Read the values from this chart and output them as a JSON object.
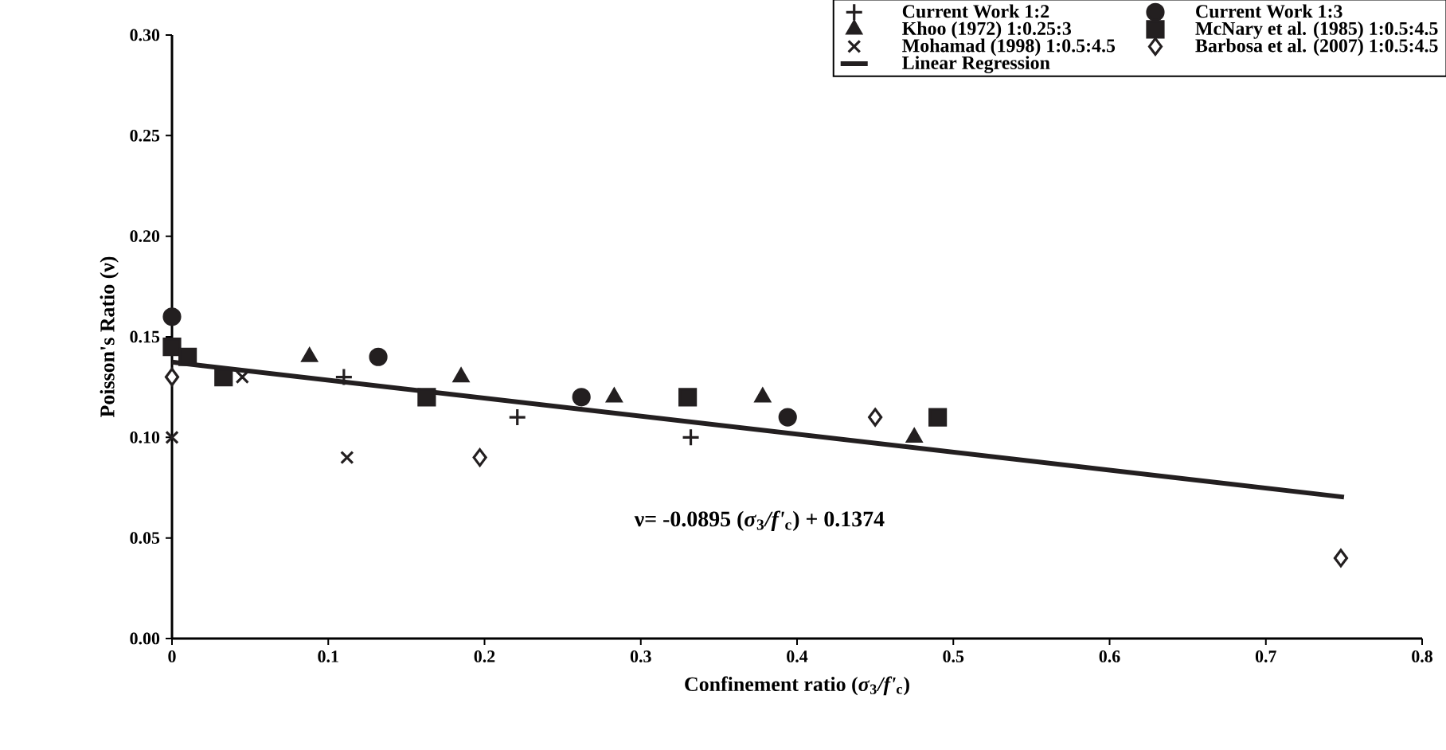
{
  "chart_data": {
    "type": "scatter",
    "xlabel": "Confinement ratio (*σ*$_{3}$*/f'*$_{c}$)",
    "ylabel": "Poisson's Ratio (ν)",
    "xlim": [
      0,
      0.8
    ],
    "xticks": [
      0,
      0.1,
      0.2,
      0.3,
      0.4,
      0.5,
      0.6,
      0.7,
      0.8
    ],
    "ylim": [
      0,
      0.3
    ],
    "yticks": [
      {
        "value": 0,
        "label": "0.00"
      },
      0.05,
      {
        "value": 0.1,
        "label": "0.10"
      },
      0.15,
      {
        "value": 0.2,
        "label": "0.20"
      },
      0.25,
      {
        "value": 0.3,
        "label": "0.30"
      }
    ],
    "legend": "top right",
    "grid": false,
    "annotations": [
      "ν= -0.0895 (*σ*$_{3}$*/f'*$_{c}$) + 0.1374"
    ],
    "series": [
      {
        "name": "Current Work 1:2",
        "color": "#231f20",
        "marker": "cross",
        "x": [
          0.11,
          0.221,
          0.332
        ],
        "values": [
          0.13,
          0.11,
          0.1
        ]
      },
      {
        "name": "Current Work 1:3",
        "color": "#231f20",
        "marker": "circle",
        "x": [
          0,
          0.132,
          0.262,
          0.394
        ],
        "values": [
          0.16,
          0.14,
          0.12,
          0.11
        ]
      },
      {
        "name": "Khoo (1972) 1:0.25:3",
        "color": "#231f20",
        "marker": "triangle",
        "x": [
          0.088,
          0.185,
          0.283,
          0.378,
          0.475
        ],
        "values": [
          0.14,
          0.13,
          0.12,
          0.12,
          0.1
        ]
      },
      {
        "name": "McNary et al. (1985) 1:0.5:4.5",
        "color": "#231f20",
        "marker": "square",
        "x": [
          0,
          0.01,
          0.033,
          0.163,
          0.33,
          0.49
        ],
        "values": [
          0.145,
          0.14,
          0.13,
          0.12,
          0.12,
          0.11
        ]
      },
      {
        "name": "Mohamad (1998) 1:0.5:4.5",
        "color": "#231f20",
        "marker": "cross",
        "x": [
          0,
          0.045,
          0.112
        ],
        "values": [
          0.1,
          0.13,
          0.09
        ]
      },
      {
        "name": "Barbosa et al. (2007) 1:0.5:4.5",
        "color": "#231f20",
        "marker": "diamond",
        "x": [
          0,
          0.197,
          0.45,
          0.748
        ],
        "values": [
          0.13,
          0.09,
          0.11,
          0.04
        ]
      },
      {
        "name": "Linear Regression",
        "type": "line",
        "color": "#231f20",
        "marker": "none",
        "line_style": "solid",
        "x": [
          0,
          0.75
        ],
        "values": [
          0.1374,
          0.0703
        ]
      }
    ]
  }
}
